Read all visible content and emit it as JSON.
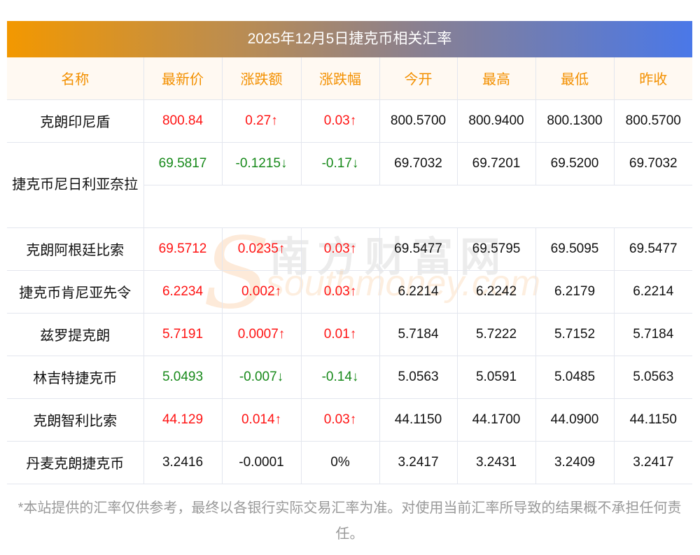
{
  "title": "2025年12月5日捷克币相关汇率",
  "headers": [
    "名称",
    "最新价",
    "涨跌额",
    "涨跌幅",
    "今开",
    "最高",
    "最低",
    "昨收"
  ],
  "rows": [
    {
      "name": "克朗印尼盾",
      "trend": "up",
      "cells": [
        "800.84",
        "0.27↑",
        "0.03↑",
        "800.5700",
        "800.9400",
        "800.1300",
        "800.5700"
      ]
    },
    {
      "name": "捷克币尼日利亚奈拉",
      "trend": "down",
      "cells": [
        "69.5817",
        "-0.1215↓",
        "-0.17↓",
        "69.7032",
        "69.7201",
        "69.5200",
        "69.7032"
      ]
    },
    {
      "name": "克朗阿根廷比索",
      "trend": "up",
      "cells": [
        "69.5712",
        "0.0235↑",
        "0.03↑",
        "69.5477",
        "69.5795",
        "69.5095",
        "69.5477"
      ]
    },
    {
      "name": "捷克币肯尼亚先令",
      "trend": "up",
      "cells": [
        "6.2234",
        "0.002↑",
        "0.03↑",
        "6.2214",
        "6.2242",
        "6.2179",
        "6.2214"
      ]
    },
    {
      "name": "兹罗提克朗",
      "trend": "up",
      "cells": [
        "5.7191",
        "0.0007↑",
        "0.01↑",
        "5.7184",
        "5.7222",
        "5.7152",
        "5.7184"
      ]
    },
    {
      "name": "林吉特捷克币",
      "trend": "down",
      "cells": [
        "5.0493",
        "-0.007↓",
        "-0.14↓",
        "5.0563",
        "5.0591",
        "5.0485",
        "5.0563"
      ]
    },
    {
      "name": "克朗智利比索",
      "trend": "up",
      "cells": [
        "44.129",
        "0.014↑",
        "0.03↑",
        "44.1150",
        "44.1700",
        "44.0900",
        "44.1150"
      ]
    },
    {
      "name": "丹麦克朗捷克币",
      "trend": "flat",
      "cells": [
        "3.2416",
        "-0.0001",
        "0%",
        "3.2417",
        "3.2431",
        "3.2409",
        "3.2417"
      ]
    }
  ],
  "watermark": {
    "cn": "南方财富网",
    "en": "southmoney.com"
  },
  "footer": "*本站提供的汇率仅供参考，最终以各银行实际交易汇率为准。对使用当前汇率所导致的结果概不承担任何责任。",
  "colors": {
    "up": "#ff1414",
    "down": "#17891a",
    "header": "#f39000"
  }
}
